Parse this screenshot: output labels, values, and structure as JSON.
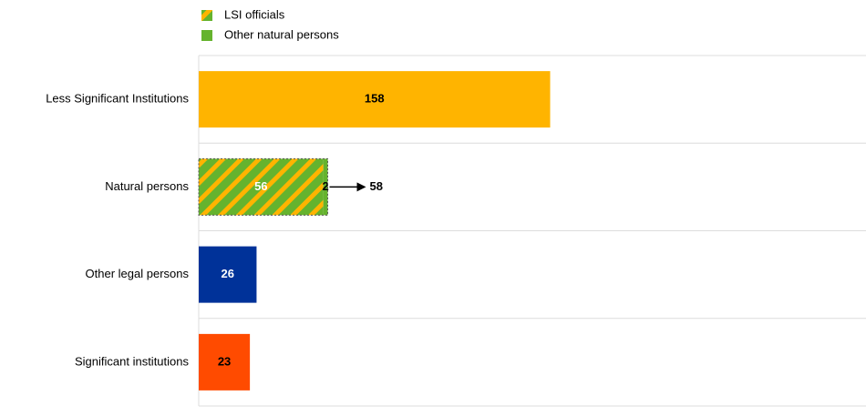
{
  "chart_data": {
    "type": "bar",
    "orientation": "horizontal",
    "categories": [
      "Less Significant Institutions",
      "Natural persons",
      "Other legal persons",
      "Significant institutions"
    ],
    "values": [
      158,
      null,
      26,
      23
    ],
    "colors": [
      "#ffb400",
      null,
      "#003299",
      "#ff4b00"
    ],
    "series": [
      {
        "name": "LSI officials",
        "color": "#65b32e",
        "pattern": "hatch",
        "hatch_color": "#ffb400",
        "values": [
          null,
          56,
          null,
          null
        ]
      },
      {
        "name": "Other natural persons",
        "color": "#65b32e",
        "values": [
          null,
          2,
          null,
          null
        ]
      }
    ],
    "totals": [
      null,
      58,
      null,
      null
    ],
    "xlim": [
      0,
      300
    ],
    "grid": true
  }
}
